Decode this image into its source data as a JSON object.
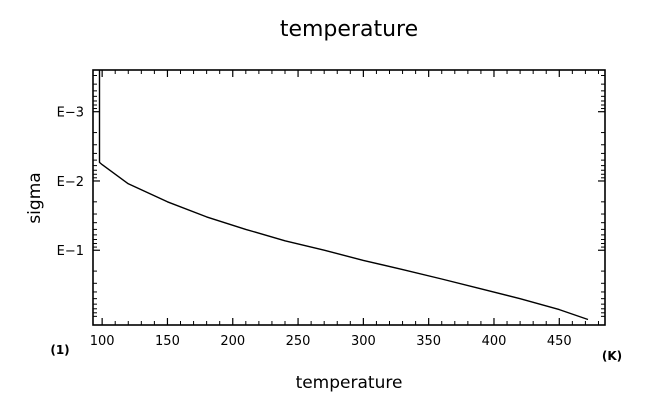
{
  "chart_data": {
    "type": "line",
    "title": "temperature",
    "xlabel": "temperature",
    "ylabel": "sigma",
    "x_unit": "(K)",
    "y_unit": "(1)",
    "x_axis": {
      "range": [
        93,
        485
      ],
      "ticks": [
        100,
        150,
        200,
        250,
        300,
        350,
        400,
        450
      ],
      "tick_labels": [
        "100",
        "150",
        "200",
        "250",
        "300",
        "350",
        "400",
        "450"
      ]
    },
    "y_axis": {
      "scale": "log",
      "orientation": "inverted",
      "range": [
        0.00025,
        1.2
      ],
      "ticks": [
        0.001,
        0.01,
        0.1
      ],
      "tick_labels": [
        "E−3",
        "E−2",
        "E−1"
      ]
    },
    "grid": false,
    "series": [
      {
        "x": [
          98,
          98,
          100,
          120,
          150,
          180,
          210,
          240,
          270,
          300,
          330,
          360,
          390,
          420,
          450,
          472
        ],
        "y": [
          0.00025,
          0.0054,
          0.0058,
          0.011,
          0.02,
          0.033,
          0.05,
          0.073,
          0.1,
          0.14,
          0.19,
          0.26,
          0.36,
          0.5,
          0.72,
          1.0
        ]
      }
    ]
  }
}
